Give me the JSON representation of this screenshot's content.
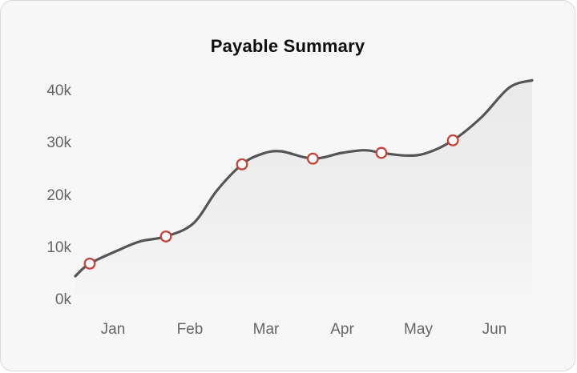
{
  "chart_data": {
    "type": "area",
    "title": "Payable Summary",
    "categories": [
      "Jan",
      "Feb",
      "Mar",
      "Apr",
      "May",
      "Jun"
    ],
    "ytick_labels": [
      "40k",
      "30k",
      "20k",
      "10k",
      "0k"
    ],
    "ytick_values_k": [
      40,
      30,
      20,
      10,
      0
    ],
    "xlabel": "",
    "ylabel": "",
    "ylim_k": [
      0,
      43
    ],
    "x_domain_months": [
      0,
      6
    ],
    "grid": false,
    "legend": false,
    "units": "thousands (k)",
    "points": [
      {
        "month": "Jan",
        "month_frac": 0.19,
        "value_k": 7.0
      },
      {
        "month": "Feb",
        "month_frac": 1.19,
        "value_k": 12.2
      },
      {
        "month": "Mar",
        "month_frac": 2.19,
        "value_k": 26.0
      },
      {
        "month": "Apr",
        "month_frac": 3.12,
        "value_k": 27.1
      },
      {
        "month": "May",
        "month_frac": 4.02,
        "value_k": 28.2
      },
      {
        "month": "Jun",
        "month_frac": 4.96,
        "value_k": 30.6
      }
    ],
    "curve": [
      [
        0.0,
        4.6
      ],
      [
        0.19,
        7.0
      ],
      [
        0.6,
        9.8
      ],
      [
        0.86,
        11.3
      ],
      [
        1.19,
        12.2
      ],
      [
        1.55,
        14.7
      ],
      [
        1.86,
        21.0
      ],
      [
        2.19,
        26.0
      ],
      [
        2.45,
        28.0
      ],
      [
        2.7,
        28.5
      ],
      [
        3.12,
        27.1
      ],
      [
        3.5,
        28.2
      ],
      [
        3.8,
        28.7
      ],
      [
        4.02,
        28.2
      ],
      [
        4.33,
        27.7
      ],
      [
        4.6,
        28.1
      ],
      [
        4.96,
        30.6
      ],
      [
        5.34,
        35.1
      ],
      [
        5.7,
        40.7
      ],
      [
        6.0,
        42.1
      ]
    ],
    "colors": {
      "line": "#555555",
      "marker_stroke": "#c8413a",
      "marker_fill": "#ffffff",
      "area_top": "#eaeaea",
      "area_bottom": "#f7f7f7",
      "axis_text": "#666666",
      "title_text": "#0d0d0d",
      "card_background": "#f7f7f7",
      "card_border": "#d9d9d9",
      "page_background": "#ffffff"
    }
  }
}
